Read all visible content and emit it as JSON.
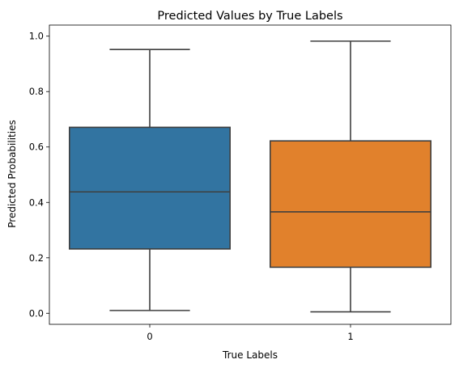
{
  "chart_data": {
    "type": "box",
    "title": "Predicted Values by True Labels",
    "xlabel": "True Labels",
    "ylabel": "Predicted Probabilities",
    "categories": [
      "0",
      "1"
    ],
    "boxes": [
      {
        "category": "0",
        "whislo": 0.01,
        "q1": 0.232,
        "med": 0.438,
        "q3": 0.671,
        "whishi": 0.952,
        "color": "#3274a1"
      },
      {
        "category": "1",
        "whislo": 0.005,
        "q1": 0.166,
        "med": 0.366,
        "q3": 0.622,
        "whishi": 0.982,
        "color": "#e1812c"
      }
    ],
    "ylim": [
      -0.04,
      1.04
    ],
    "yticks": [
      0.0,
      0.2,
      0.4,
      0.6,
      0.8,
      1.0
    ],
    "ytick_labels": [
      "0.0",
      "0.2",
      "0.4",
      "0.6",
      "0.8",
      "1.0"
    ],
    "grid": false,
    "edge_color": "#3f3f3f"
  }
}
